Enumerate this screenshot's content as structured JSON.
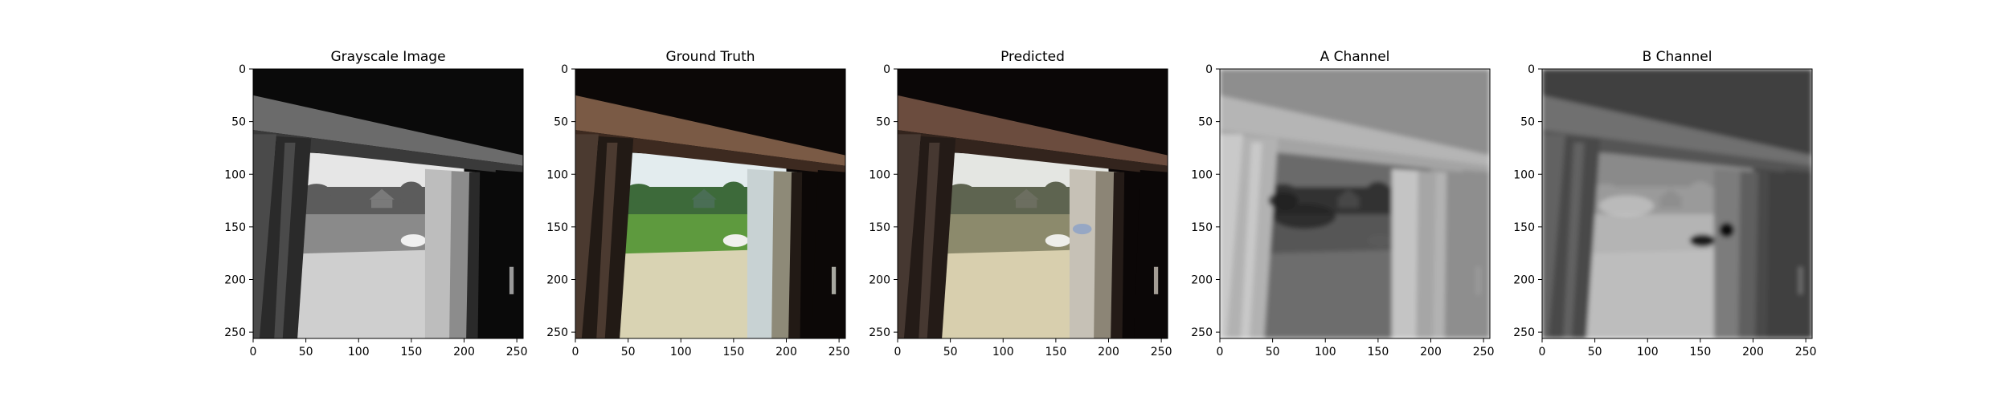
{
  "figure": {
    "background": "#ffffff",
    "axis_color": "#000000"
  },
  "panels": [
    {
      "title": "Grayscale Image",
      "mode": "grayscale",
      "x_ticks": [
        "0",
        "50",
        "100",
        "150",
        "200",
        "250"
      ],
      "y_ticks": [
        "0",
        "50",
        "100",
        "150",
        "200",
        "250"
      ]
    },
    {
      "title": "Ground Truth",
      "mode": "color",
      "x_ticks": [
        "0",
        "50",
        "100",
        "150",
        "200",
        "250"
      ],
      "y_ticks": [
        "0",
        "50",
        "100",
        "150",
        "200",
        "250"
      ]
    },
    {
      "title": "Predicted",
      "mode": "predicted",
      "x_ticks": [
        "0",
        "50",
        "100",
        "150",
        "200",
        "250"
      ],
      "y_ticks": [
        "0",
        "50",
        "100",
        "150",
        "200",
        "250"
      ]
    },
    {
      "title": "A Channel",
      "mode": "a_channel",
      "x_ticks": [
        "0",
        "50",
        "100",
        "150",
        "200",
        "250"
      ],
      "y_ticks": [
        "0",
        "50",
        "100",
        "150",
        "200",
        "250"
      ]
    },
    {
      "title": "B Channel",
      "mode": "b_channel",
      "x_ticks": [
        "0",
        "50",
        "100",
        "150",
        "200",
        "250"
      ],
      "y_ticks": [
        "0",
        "50",
        "100",
        "150",
        "200",
        "250"
      ]
    }
  ]
}
